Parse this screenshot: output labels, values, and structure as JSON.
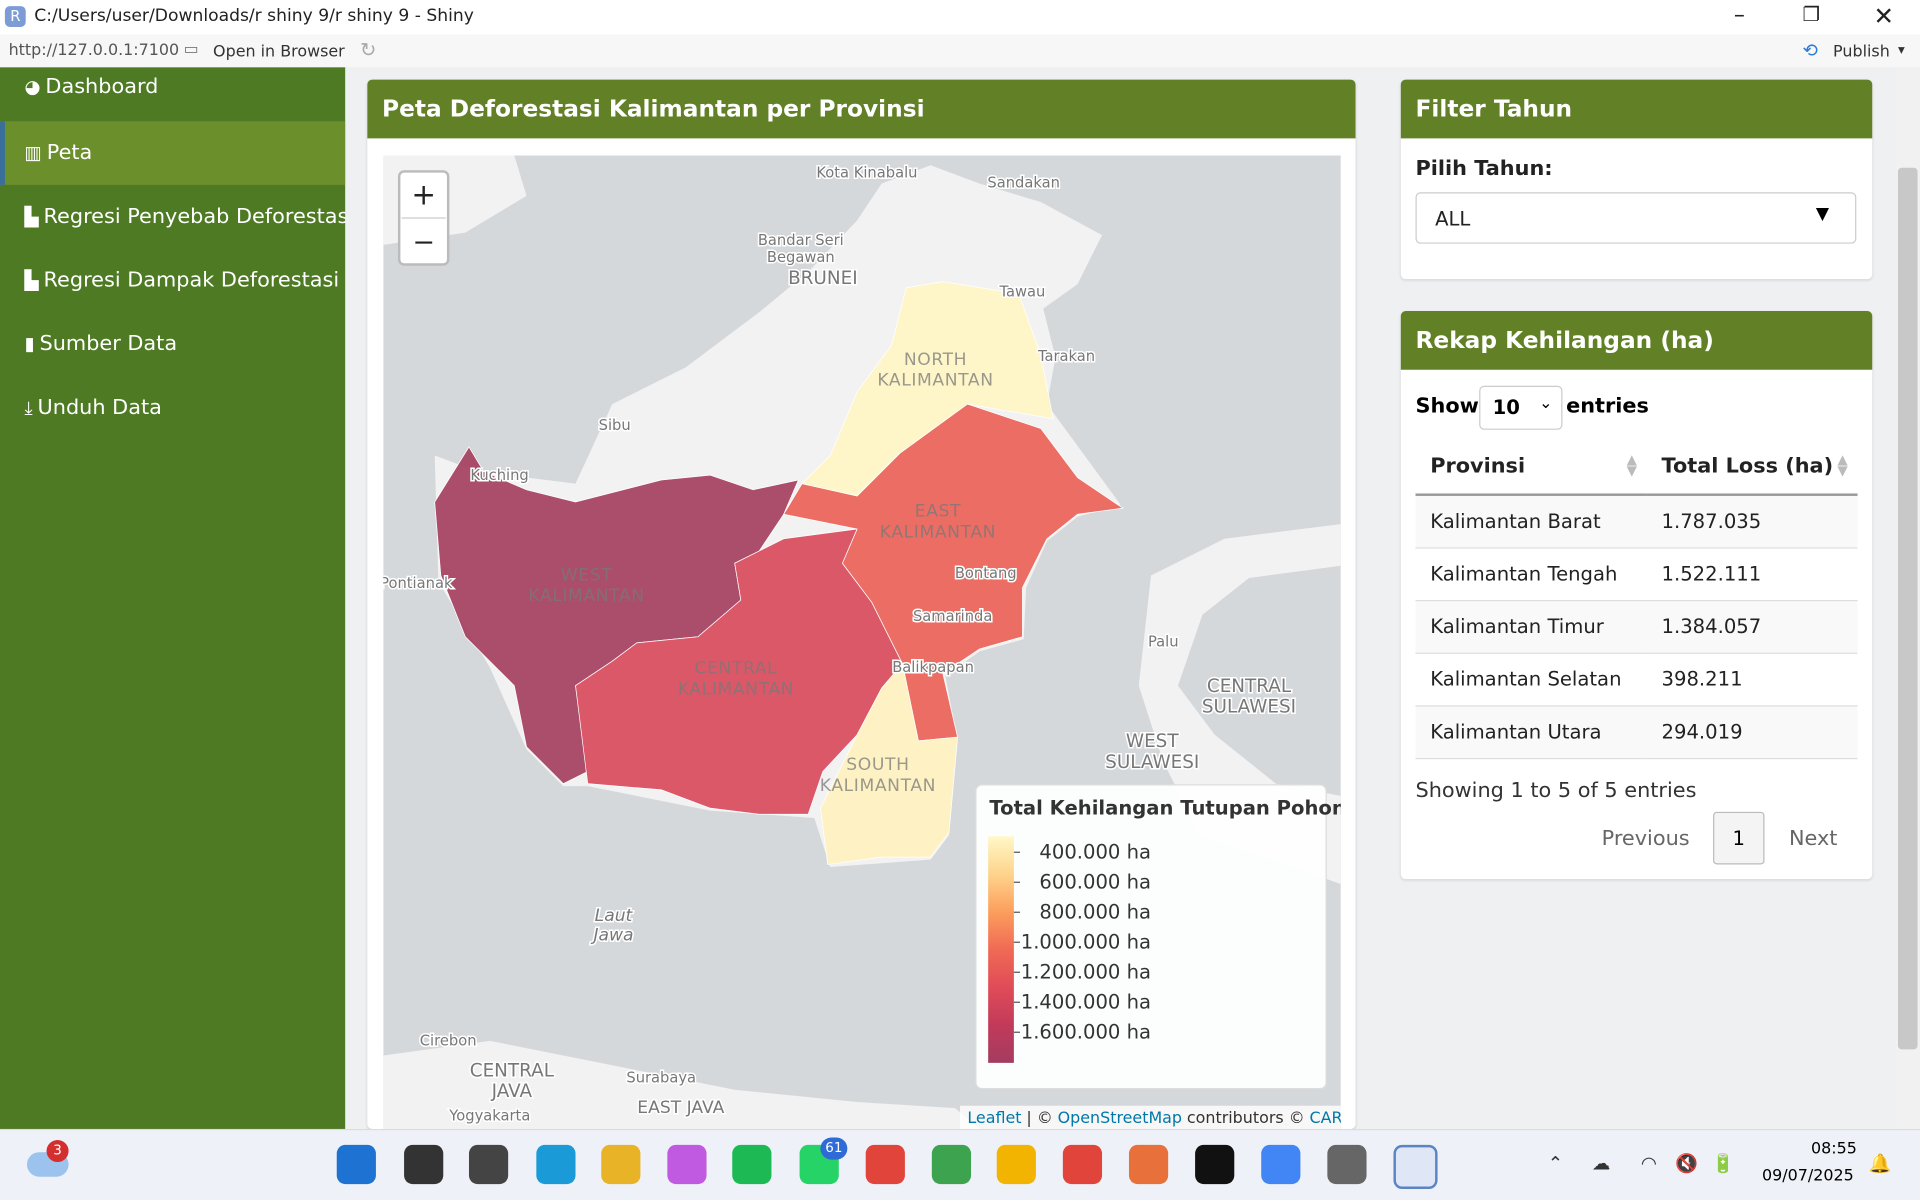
{
  "window": {
    "title": "C:/Users/user/Downloads/r shiny 9/r shiny 9 - Shiny",
    "url": "http://127.0.0.1:7100",
    "open_browser": "Open in Browser",
    "publish": "Publish"
  },
  "sidebar": {
    "items": [
      "Dashboard",
      "Peta",
      "Regresi Penyebab Deforestasi",
      "Regresi Dampak Deforestasi",
      "Sumber Data",
      "Unduh Data"
    ]
  },
  "map_panel": {
    "title": "Peta Deforestasi Kalimantan per Provinsi",
    "zoom_in": "+",
    "zoom_out": "−",
    "regions": [
      {
        "label": [
          "WEST",
          "KALIMANTAN"
        ],
        "color": "#a5405f"
      },
      {
        "label": [
          "CENTRAL",
          "KALIMANTAN"
        ],
        "color": "#d94b5c"
      },
      {
        "label": [
          "EAST",
          "KALIMANTAN"
        ],
        "color": "#ea6258"
      },
      {
        "label": [
          "NORTH",
          "KALIMANTAN"
        ],
        "color": "#fff6c4"
      },
      {
        "label": [
          "SOUTH",
          "KALIMANTAN"
        ],
        "color": "#fff2c0"
      }
    ],
    "places": [
      [
        "Kota Kinabalu"
      ],
      [
        "Sandakan"
      ],
      [
        "Bandar Seri",
        "Begawan"
      ],
      [
        "BRUNEI"
      ],
      [
        "Tawau"
      ],
      [
        "Tarakan"
      ],
      [
        "Sibu"
      ],
      [
        "Kuching"
      ],
      [
        "Pontianak"
      ],
      [
        "Bontang"
      ],
      [
        "Samarinda"
      ],
      [
        "Balikpapan"
      ],
      [
        "Palu"
      ],
      [
        "CENTRAL",
        "SULAWESI"
      ],
      [
        "WEST",
        "SULAWESI"
      ],
      [
        "Laut",
        "Jawa"
      ],
      [
        "Cirebon"
      ],
      [
        "CENTRAL",
        "JAVA"
      ],
      [
        "Surabaya"
      ],
      [
        "Yogyakarta"
      ],
      [
        "EAST JAVA"
      ]
    ],
    "legend": {
      "title": "Total Kehilangan Tutupan Pohon",
      "labels": [
        "400.000 ha",
        "600.000 ha",
        "800.000 ha",
        "1.000.000 ha",
        "1.200.000 ha",
        "1.400.000 ha",
        "1.600.000 ha"
      ]
    },
    "attribution": {
      "leaflet": "Leaflet",
      "sep": "| ©",
      "osm": "OpenStreetMap",
      "contrib": "contributors ©",
      "carto": "CARTO"
    }
  },
  "filter": {
    "title": "Filter Tahun",
    "label": "Pilih Tahun:",
    "selected": "ALL"
  },
  "rekap": {
    "title": "Rekap Kehilangan (ha)",
    "show": "Show",
    "length": "10",
    "entries": "entries",
    "columns": [
      "Provinsi",
      "Total Loss (ha)"
    ],
    "rows": [
      [
        "Kalimantan Barat",
        "1.787.035"
      ],
      [
        "Kalimantan Tengah",
        "1.522.111"
      ],
      [
        "Kalimantan Timur",
        "1.384.057"
      ],
      [
        "Kalimantan Selatan",
        "398.211"
      ],
      [
        "Kalimantan Utara",
        "294.019"
      ]
    ],
    "info": "Showing 1 to 5 of 5 entries",
    "previous": "Previous",
    "page": "1",
    "next": "Next"
  },
  "taskbar": {
    "weather_badge": "3",
    "whatsapp_badge": "61",
    "time": "08:55",
    "date": "09/07/2025"
  }
}
